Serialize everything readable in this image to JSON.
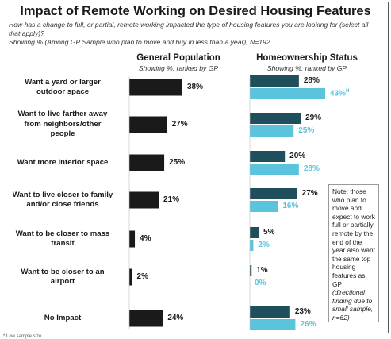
{
  "header": {
    "title": "Impact of Remote Working on Desired Housing Features",
    "question": "How has a change to full, or partial, remote working impacted the type of housing features you are looking for (select all that apply)?",
    "base": "Showing % (Among GP Sample who plan to move and buy in less than a year), N=192"
  },
  "columns": {
    "gp_title": "General Population",
    "gp_sub": "Showing %, ranked by GP",
    "ho_title": "Homeownership Status",
    "ho_sub": "Showing %, ranked by GP"
  },
  "note": {
    "main": "Note: those who plan to move and expect to work full or partially remote by the end of the year also want the same top housing features as GP",
    "italic": "(directional finding due to small sample, n=62)"
  },
  "footer": "* Low sample size",
  "colors": {
    "gp": "#1a1a1a",
    "dark_teal": "#1f4e5c",
    "light_teal": "#5bc4dc"
  },
  "chart_data": {
    "type": "bar",
    "categories": [
      "Want a yard or larger outdoor space",
      "Want to live farther away from neighbors/other people",
      "Want more interior space",
      "Want to live closer to family and/or close friends",
      "Want to be closer to mass transit",
      "Want to be closer to an airport",
      "No Impact"
    ],
    "category_lines": [
      [
        "Want a yard or larger",
        "outdoor space"
      ],
      [
        "Want to live farther away",
        "from neighbors/other",
        "people"
      ],
      [
        "Want more interior space"
      ],
      [
        "Want to live closer to family",
        "and/or close friends"
      ],
      [
        "Want to be closer to mass",
        "transit"
      ],
      [
        "Want to be closer to an",
        "airport"
      ],
      [
        "No Impact"
      ]
    ],
    "gp": {
      "values": [
        38,
        27,
        25,
        21,
        4,
        2,
        24
      ],
      "labels": [
        "38%",
        "27%",
        "25%",
        "21%",
        "4%",
        "2%",
        "24%"
      ]
    },
    "ho_dark": {
      "values": [
        28,
        29,
        20,
        27,
        5,
        1,
        23
      ],
      "labels": [
        "28%",
        "29%",
        "20%",
        "27%",
        "5%",
        "1%",
        "23%"
      ]
    },
    "ho_light": {
      "values": [
        43,
        25,
        28,
        16,
        2,
        0,
        26
      ],
      "labels": [
        "43%",
        "25%",
        "28%",
        "16%",
        "2%",
        "0%",
        "26%"
      ],
      "superscripts": [
        "H",
        "",
        "",
        "",
        "",
        "",
        ""
      ]
    }
  }
}
